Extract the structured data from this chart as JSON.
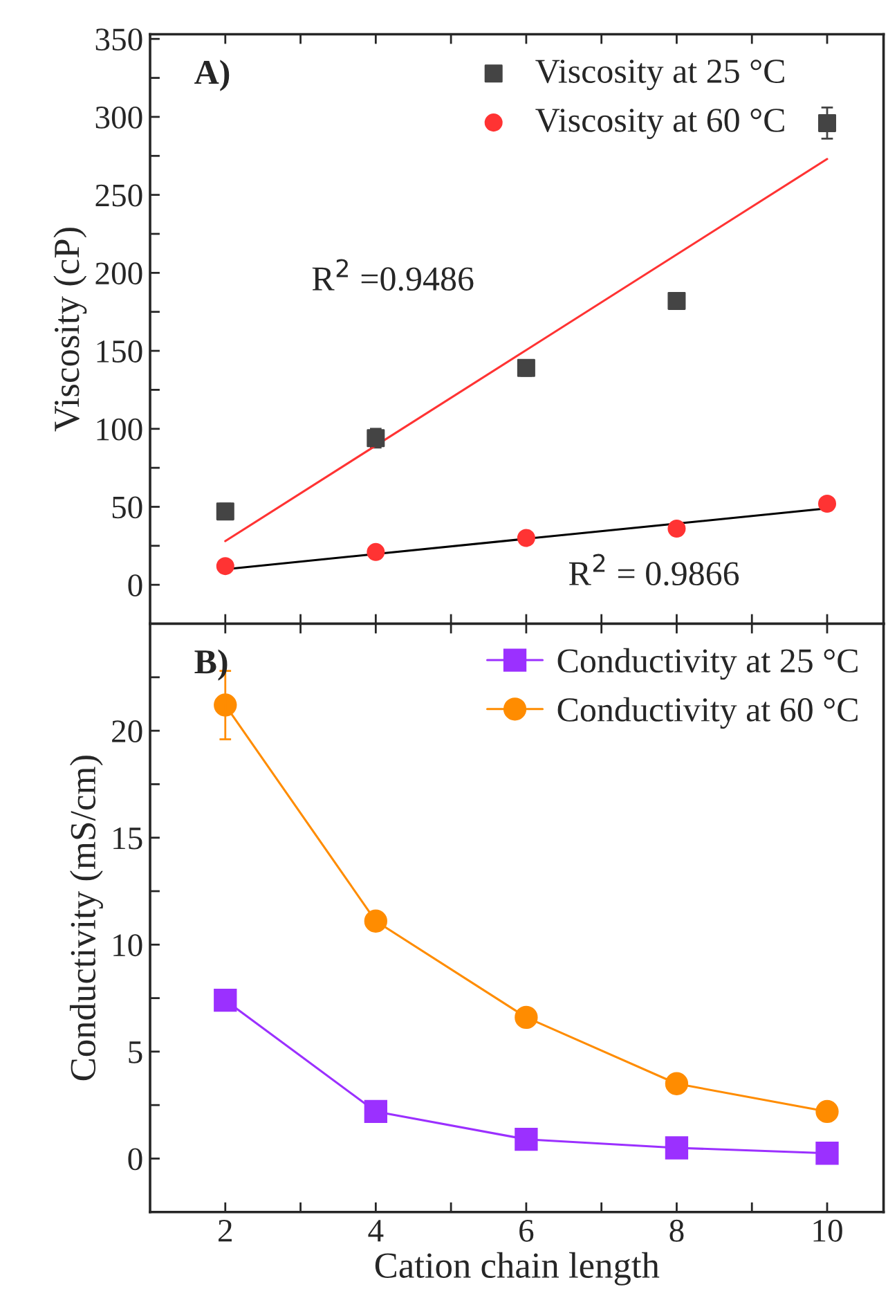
{
  "chart_data": [
    {
      "type": "scatter",
      "ylabel": "Viscosity (cP)",
      "xlim": [
        1,
        10.75
      ],
      "ylim": [
        -25,
        353
      ],
      "xticks": [
        2,
        {
          "value": 3,
          "label": null
        },
        4,
        {
          "value": 5,
          "label": null
        },
        6,
        {
          "value": 7,
          "label": null
        },
        8,
        {
          "value": 9,
          "label": null
        },
        10
      ],
      "yticks": [
        0,
        {
          "value": 25,
          "label": null
        },
        50,
        {
          "value": 75,
          "label": null
        },
        100,
        {
          "value": 125,
          "label": null
        },
        150,
        {
          "value": 175,
          "label": null
        },
        200,
        {
          "value": 225,
          "label": null
        },
        250,
        {
          "value": 275,
          "label": null
        },
        300,
        {
          "value": 325,
          "label": null
        },
        350
      ],
      "tick_labels": "y",
      "legend": "top right",
      "grid": false,
      "annotations": [
        "A)",
        "R$^{2}$ =0.9486",
        "R$^{2}$ = 0.9866"
      ],
      "series": [
        {
          "name": "Viscosity at 25 °C",
          "marker": "square",
          "color": "#444444",
          "x": [
            2,
            4,
            6,
            8,
            10
          ],
          "values": [
            47,
            94,
            139,
            182,
            296
          ],
          "errors": [
            5,
            6,
            5,
            5,
            10
          ]
        },
        {
          "name": "Viscosity at 60 °C",
          "marker": "circle",
          "color": "#ff3333",
          "x": [
            2,
            4,
            6,
            8,
            10
          ],
          "values": [
            12,
            21,
            30,
            36,
            52
          ]
        },
        {
          "type": "line",
          "color": "#ff3333",
          "x": [
            2,
            10
          ],
          "values": [
            28,
            273
          ]
        },
        {
          "type": "line",
          "color": "#000000",
          "x": [
            2,
            10
          ],
          "values": [
            10,
            49
          ]
        }
      ]
    },
    {
      "type": "line",
      "xlabel": "Cation chain length",
      "ylabel": "Conductivity (mS/cm)",
      "xlim": [
        1,
        10.75
      ],
      "ylim": [
        -2.5,
        25
      ],
      "xticks": [
        2,
        {
          "value": 3,
          "label": null
        },
        4,
        {
          "value": 5,
          "label": null
        },
        6,
        {
          "value": 7,
          "label": null
        },
        8,
        {
          "value": 9,
          "label": null
        },
        10
      ],
      "yticks": [
        0,
        {
          "value": 2.5,
          "label": null
        },
        5,
        {
          "value": 7.5,
          "label": null
        },
        10,
        {
          "value": 12.5,
          "label": null
        },
        15,
        {
          "value": 17.5,
          "label": null
        },
        20,
        {
          "value": 22.5,
          "label": null
        }
      ],
      "legend": "top right",
      "grid": false,
      "annotations": [
        "B)"
      ],
      "series": [
        {
          "name": "Conductivity at 25 °C",
          "marker": "square",
          "color": "#9b30ff",
          "x": [
            2,
            4,
            6,
            8,
            10
          ],
          "values": [
            7.4,
            2.2,
            0.9,
            0.5,
            0.25
          ]
        },
        {
          "name": "Conductivity at 60 °C",
          "marker": "circle",
          "color": "#ff8c00",
          "x": [
            2,
            4,
            6,
            8,
            10
          ],
          "values": [
            21.2,
            11.1,
            6.6,
            3.5,
            2.2
          ],
          "errors": [
            1.6,
            null,
            null,
            null,
            null
          ]
        }
      ]
    }
  ]
}
